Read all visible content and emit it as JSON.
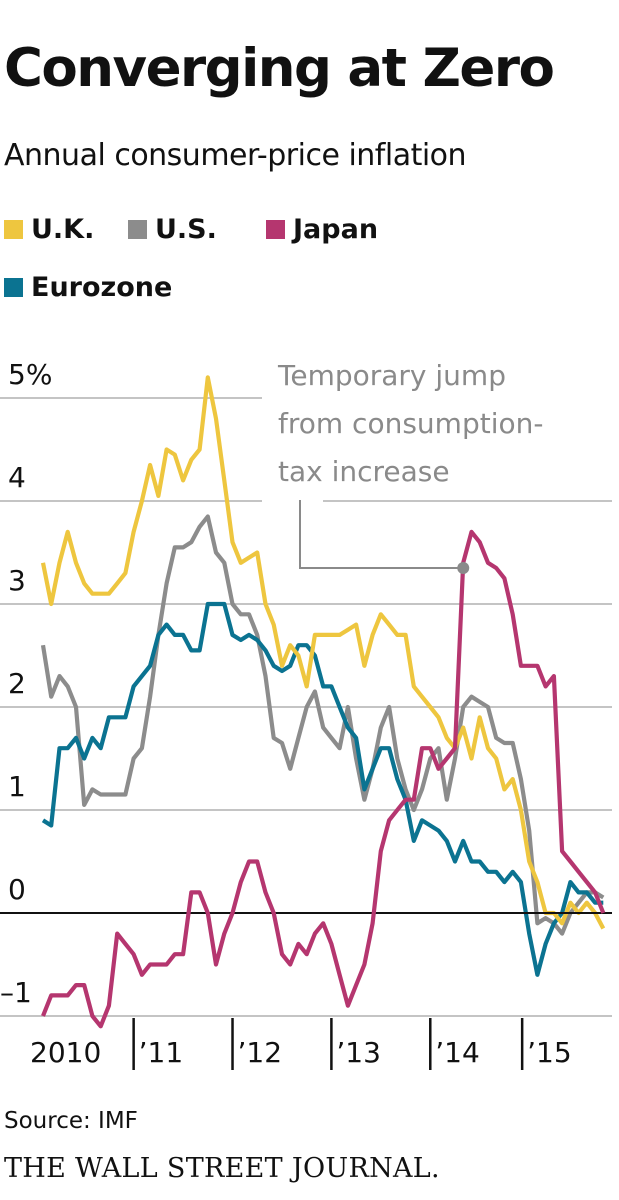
{
  "chart_data": {
    "type": "line",
    "title": "Converging at Zero",
    "subtitle": "Annual consumer-price inflation",
    "xlabel": "",
    "ylabel": "",
    "x_start": "Jan 2010",
    "x_end": "Sep 2015",
    "frequency": "monthly",
    "x_tick_labels": [
      "2010",
      "’11",
      "’12",
      "’13",
      "’14",
      "’15"
    ],
    "y_tick_labels": [
      "5%",
      "4",
      "3",
      "2",
      "1",
      "0",
      "–1"
    ],
    "y_ticks": [
      5,
      4,
      3,
      2,
      1,
      0,
      -1
    ],
    "ylim": [
      -1,
      5
    ],
    "grid": true,
    "legend_placement": "top",
    "series": [
      {
        "name": "U.K.",
        "color": "#EEC63F",
        "values": [
          3.4,
          3.0,
          3.4,
          3.7,
          3.4,
          3.2,
          3.1,
          3.1,
          3.1,
          3.2,
          3.3,
          3.7,
          4.0,
          4.35,
          4.05,
          4.5,
          4.45,
          4.2,
          4.4,
          4.5,
          5.2,
          4.8,
          4.2,
          3.6,
          3.4,
          3.45,
          3.5,
          3.0,
          2.8,
          2.4,
          2.6,
          2.5,
          2.2,
          2.7,
          2.7,
          2.7,
          2.7,
          2.75,
          2.8,
          2.4,
          2.7,
          2.9,
          2.8,
          2.7,
          2.7,
          2.2,
          2.1,
          2.0,
          1.9,
          1.7,
          1.6,
          1.8,
          1.5,
          1.9,
          1.6,
          1.5,
          1.2,
          1.3,
          1.0,
          0.5,
          0.3,
          0.0,
          0.0,
          -0.1,
          0.1,
          0.0,
          0.1,
          0.0,
          -0.15
        ]
      },
      {
        "name": "U.S.",
        "color": "#8C8C8C",
        "values": [
          2.6,
          2.1,
          2.3,
          2.2,
          2.0,
          1.05,
          1.2,
          1.15,
          1.15,
          1.15,
          1.15,
          1.5,
          1.6,
          2.1,
          2.7,
          3.2,
          3.55,
          3.55,
          3.6,
          3.75,
          3.85,
          3.5,
          3.4,
          3.0,
          2.9,
          2.9,
          2.7,
          2.3,
          1.7,
          1.65,
          1.4,
          1.7,
          2.0,
          2.15,
          1.8,
          1.7,
          1.6,
          2.0,
          1.5,
          1.1,
          1.4,
          1.8,
          2.0,
          1.5,
          1.2,
          1.0,
          1.2,
          1.5,
          1.6,
          1.1,
          1.5,
          2.0,
          2.1,
          2.05,
          2.0,
          1.7,
          1.65,
          1.65,
          1.3,
          0.8,
          -0.1,
          -0.05,
          -0.1,
          -0.2,
          0.0,
          0.1,
          0.2,
          0.2,
          0.15
        ]
      },
      {
        "name": "Japan",
        "color": "#B5366F",
        "values": [
          -1.0,
          -0.8,
          -0.8,
          -0.8,
          -0.7,
          -0.7,
          -1.0,
          -1.1,
          -0.9,
          -0.2,
          -0.3,
          -0.4,
          -0.6,
          -0.5,
          -0.5,
          -0.5,
          -0.4,
          -0.4,
          0.2,
          0.2,
          0.0,
          -0.5,
          -0.2,
          0.0,
          0.3,
          0.5,
          0.5,
          0.2,
          0.0,
          -0.4,
          -0.5,
          -0.3,
          -0.4,
          -0.2,
          -0.1,
          -0.3,
          -0.6,
          -0.9,
          -0.7,
          -0.5,
          -0.1,
          0.6,
          0.9,
          1.0,
          1.1,
          1.1,
          1.6,
          1.6,
          1.4,
          1.5,
          1.6,
          3.4,
          3.7,
          3.6,
          3.4,
          3.35,
          3.25,
          2.9,
          2.4,
          2.4,
          2.4,
          2.2,
          2.3,
          0.6,
          0.5,
          0.4,
          0.3,
          0.2,
          0.0
        ]
      },
      {
        "name": "Eurozone",
        "color": "#0B7391",
        "values": [
          0.9,
          0.85,
          1.6,
          1.6,
          1.7,
          1.5,
          1.7,
          1.6,
          1.9,
          1.9,
          1.9,
          2.2,
          2.3,
          2.4,
          2.7,
          2.8,
          2.7,
          2.7,
          2.55,
          2.55,
          3.0,
          3.0,
          3.0,
          2.7,
          2.65,
          2.7,
          2.65,
          2.55,
          2.4,
          2.35,
          2.4,
          2.6,
          2.6,
          2.5,
          2.2,
          2.2,
          2.0,
          1.8,
          1.7,
          1.2,
          1.4,
          1.6,
          1.6,
          1.3,
          1.1,
          0.7,
          0.9,
          0.85,
          0.8,
          0.7,
          0.5,
          0.7,
          0.5,
          0.5,
          0.4,
          0.4,
          0.3,
          0.4,
          0.3,
          -0.2,
          -0.6,
          -0.3,
          -0.1,
          0.0,
          0.3,
          0.2,
          0.2,
          0.1,
          0.1
        ]
      }
    ],
    "annotation": {
      "text_lines": [
        "Temporary jump",
        "from consumption-",
        "tax increase"
      ],
      "series": "Japan",
      "point": "Apr 2014"
    },
    "source": "Source: IMF",
    "publisher": "THE WALL STREET JOURNAL."
  }
}
